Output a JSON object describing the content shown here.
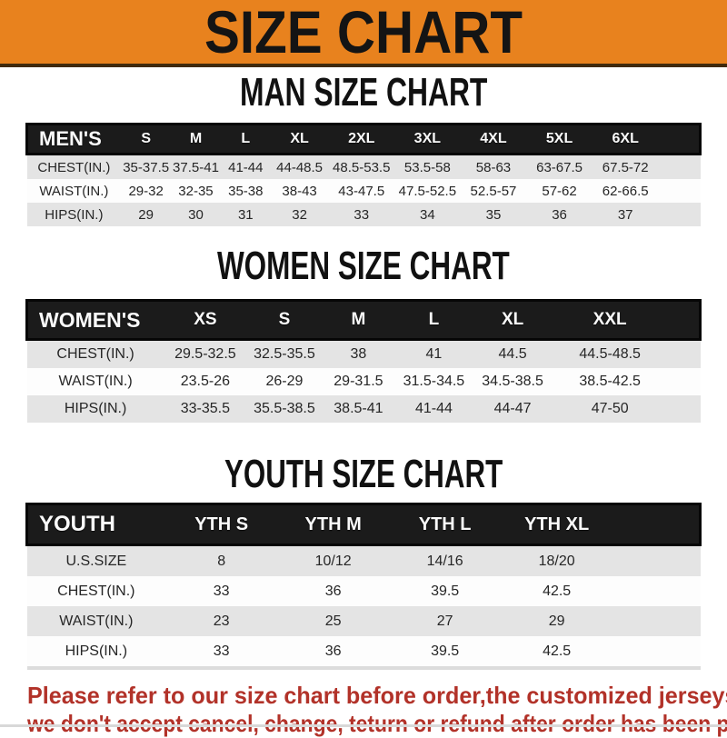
{
  "banner": {
    "title": "SIZE CHART"
  },
  "colors": {
    "banner_orange": "#e8821e",
    "header_black": "#1b1b1b",
    "stripe_gray": "#e4e4e4",
    "note_red": "#b23229"
  },
  "chart_data": [
    {
      "type": "table",
      "title": "MAN SIZE CHART",
      "label_column": "MEN'S",
      "columns": [
        "S",
        "M",
        "L",
        "XL",
        "2XL",
        "3XL",
        "4XL",
        "5XL",
        "6XL"
      ],
      "rows": [
        [
          "CHEST(IN.)",
          "35-37.5",
          "37.5-41",
          "41-44",
          "44-48.5",
          "48.5-53.5",
          "53.5-58",
          "58-63",
          "63-67.5",
          "67.5-72"
        ],
        [
          "WAIST(IN.)",
          "29-32",
          "32-35",
          "35-38",
          "38-43",
          "43-47.5",
          "47.5-52.5",
          "52.5-57",
          "57-62",
          "62-66.5"
        ],
        [
          "HIPS(IN.)",
          "29",
          "30",
          "31",
          "32",
          "33",
          "34",
          "35",
          "36",
          "37"
        ]
      ]
    },
    {
      "type": "table",
      "title": "WOMEN SIZE CHART",
      "label_column": "WOMEN'S",
      "columns": [
        "XS",
        "S",
        "M",
        "L",
        "XL",
        "XXL"
      ],
      "rows": [
        [
          "CHEST(IN.)",
          "29.5-32.5",
          "32.5-35.5",
          "38",
          "41",
          "44.5",
          "44.5-48.5"
        ],
        [
          "WAIST(IN.)",
          "23.5-26",
          "26-29",
          "29-31.5",
          "31.5-34.5",
          "34.5-38.5",
          "38.5-42.5"
        ],
        [
          "HIPS(IN.)",
          "33-35.5",
          "35.5-38.5",
          "38.5-41",
          "41-44",
          "44-47",
          "47-50"
        ]
      ]
    },
    {
      "type": "table",
      "title": "YOUTH SIZE CHART",
      "label_column": "YOUTH",
      "columns": [
        "YTH S",
        "YTH M",
        "YTH L",
        "YTH XL"
      ],
      "rows": [
        [
          "U.S.SIZE",
          "8",
          "10/12",
          "14/16",
          "18/20"
        ],
        [
          "CHEST(IN.)",
          "33",
          "36",
          "39.5",
          "42.5"
        ],
        [
          "WAIST(IN.)",
          "23",
          "25",
          "27",
          "29"
        ],
        [
          "HIPS(IN.)",
          "33",
          "36",
          "39.5",
          "42.5"
        ]
      ]
    }
  ],
  "footer_note": {
    "lines": [
      "Please refer to our size chart before order,the customized jerseys are special products,",
      "we don't accept cancel, change, teturn or refund after order has been placed!"
    ]
  }
}
